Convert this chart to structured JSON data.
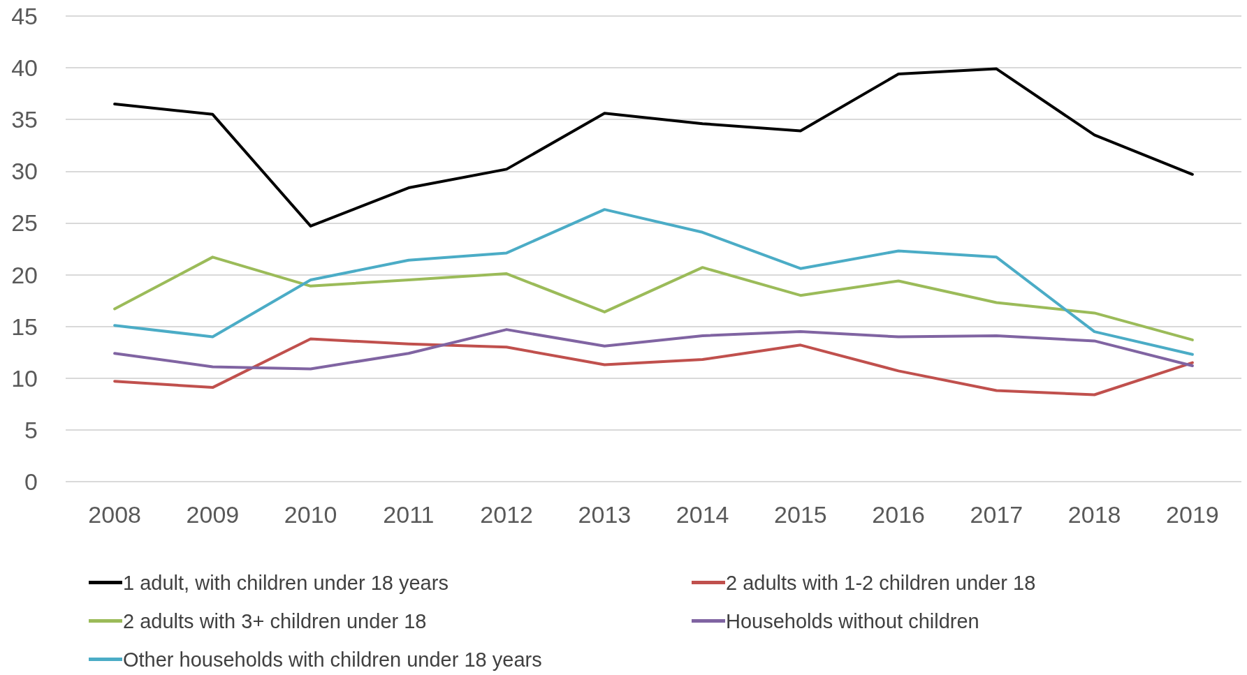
{
  "chart_data": {
    "type": "line",
    "categories": [
      "2008",
      "2009",
      "2010",
      "2011",
      "2012",
      "2013",
      "2014",
      "2015",
      "2016",
      "2017",
      "2018",
      "2019"
    ],
    "series": [
      {
        "name": "1 adult, with children under 18 years",
        "color": "#000000",
        "values": [
          36.5,
          35.5,
          24.7,
          28.4,
          30.2,
          35.6,
          34.6,
          33.9,
          39.4,
          39.9,
          33.5,
          29.7
        ]
      },
      {
        "name": "2 adults with 1-2 children under 18",
        "color": "#c0504d",
        "values": [
          9.7,
          9.1,
          13.8,
          13.3,
          13.0,
          11.3,
          11.8,
          13.2,
          10.7,
          8.8,
          8.4,
          11.5
        ]
      },
      {
        "name": "2 adults with 3+ children under 18",
        "color": "#9bbb59",
        "values": [
          16.7,
          21.7,
          18.9,
          19.5,
          20.1,
          16.4,
          20.7,
          18.0,
          19.4,
          17.3,
          16.3,
          13.7
        ]
      },
      {
        "name": "Households without children",
        "color": "#8064a2",
        "values": [
          12.4,
          11.1,
          10.9,
          12.4,
          14.7,
          13.1,
          14.1,
          14.5,
          14.0,
          14.1,
          13.6,
          11.2
        ]
      },
      {
        "name": "Other households with children under 18 years",
        "color": "#4bacc6",
        "values": [
          15.1,
          14.0,
          19.5,
          21.4,
          22.1,
          26.3,
          24.1,
          20.6,
          22.3,
          21.7,
          14.5,
          12.3
        ]
      }
    ],
    "ylim": [
      0,
      45
    ],
    "yticks": [
      0,
      5,
      10,
      15,
      20,
      25,
      30,
      35,
      40,
      45
    ],
    "grid": "y",
    "legend": "bottom",
    "marker": "none",
    "line_style": "solid"
  }
}
